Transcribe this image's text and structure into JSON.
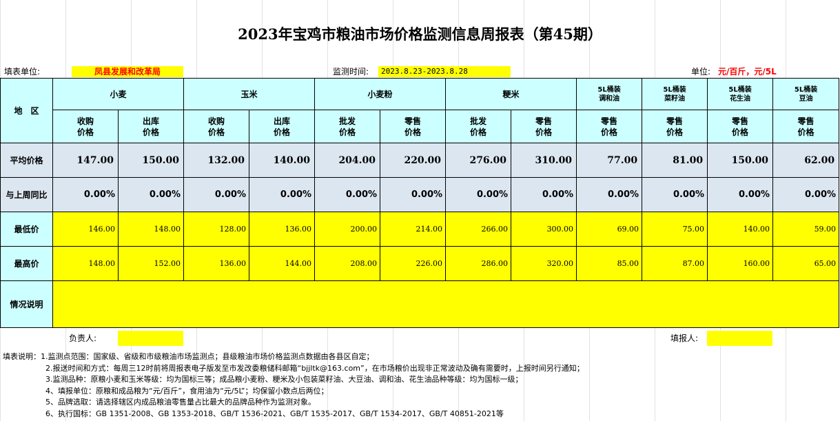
{
  "title": "2023年宝鸡市粮油市场价格监测信息周报表（第45期）",
  "meta": {
    "unit_label": "填表单位:",
    "unit_value": "凤县发展和改革局",
    "time_label": "监测时间:",
    "time_value": "2023.8.23-2023.8.28",
    "price_unit_label": "单位:",
    "price_unit_value": "元/百斤，元/5L"
  },
  "table": {
    "region_header": "地　区",
    "groups": [
      {
        "name": "小麦",
        "cols": [
          "收购\n价格",
          "出库\n价格"
        ]
      },
      {
        "name": "玉米",
        "cols": [
          "收购\n价格",
          "出库\n价格"
        ]
      },
      {
        "name": "小麦粉",
        "cols": [
          "批发\n价格",
          "零售\n价格"
        ]
      },
      {
        "name": "粳米",
        "cols": [
          "批发\n价格",
          "零售\n价格"
        ]
      },
      {
        "name": "5L桶装\n调和油",
        "cols": [
          "零售\n价格"
        ]
      },
      {
        "name": "5L桶装\n菜籽油",
        "cols": [
          "零售\n价格"
        ]
      },
      {
        "name": "5L桶装\n花生油",
        "cols": [
          "零售\n价格"
        ]
      },
      {
        "name": "5L桶装\n豆油",
        "cols": [
          "零售\n价格"
        ]
      }
    ],
    "rows": {
      "avg": {
        "label": "平均价格",
        "values": [
          "147.00",
          "150.00",
          "132.00",
          "140.00",
          "204.00",
          "220.00",
          "276.00",
          "310.00",
          "77.00",
          "81.00",
          "150.00",
          "62.00"
        ]
      },
      "change": {
        "label": "与上周同比",
        "values": [
          "0.00%",
          "0.00%",
          "0.00%",
          "0.00%",
          "0.00%",
          "0.00%",
          "0.00%",
          "0.00%",
          "0.00%",
          "0.00%",
          "0.00%",
          "0.00%"
        ]
      },
      "min": {
        "label": "最低价",
        "values": [
          "146.00",
          "148.00",
          "128.00",
          "136.00",
          "200.00",
          "214.00",
          "266.00",
          "300.00",
          "69.00",
          "75.00",
          "140.00",
          "59.00"
        ]
      },
      "max": {
        "label": "最高价",
        "values": [
          "148.00",
          "152.00",
          "136.00",
          "144.00",
          "208.00",
          "226.00",
          "286.00",
          "320.00",
          "85.00",
          "87.00",
          "160.00",
          "65.00"
        ]
      },
      "notes": {
        "label": "情况说明",
        "value": ""
      }
    }
  },
  "footer": {
    "responsible_label": "负责人:",
    "filler_label": "填报人:"
  },
  "notes": {
    "label": "填表说明：",
    "items": [
      "1.监测点范围：国家级、省级和市级粮油市场监测点；县级粮油市场价格监测点数据由各县区自定；",
      "2.报送时间和方式：每周三12时前将周报表电子版发至市发改委粮储科邮箱“bjjltk@163.com”，在市场粮价出现非正常波动及确有需要时，上报时间另行通知；",
      "3.监测品种：原粮小麦和玉米等级：均为国标三等；成品粮小麦粉、粳米及小包装菜籽油、大豆油、调和油、花生油品种等级：均为国标一级；",
      "4、填报单位：原粮和成品粮为“元/百斤”，食用油为“元/5L”；均保留小数点后两位；",
      "5、品牌选取：请选择辖区内成品粮油零售量占比最大的品牌品种作为监测对象。",
      "6、执行国标：GB 1351-2008、GB 1353-2018、GB/T 1536-2021、GB/T 1535-2017、GB/T 1534-2017、GB/T 40851-2021等"
    ]
  }
}
